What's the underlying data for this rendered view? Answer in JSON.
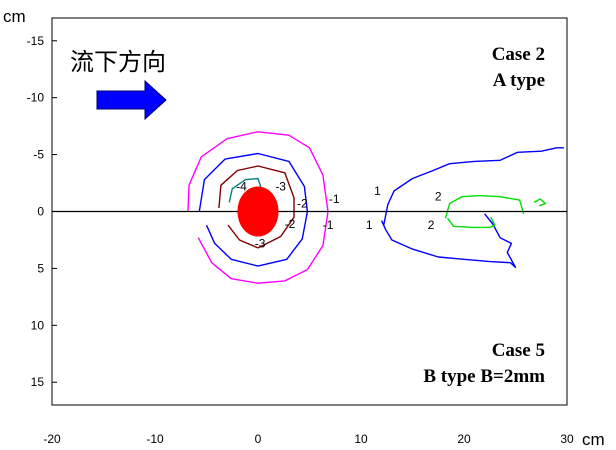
{
  "chart_data": {
    "type": "contour",
    "x_unit": "cm",
    "y_unit": "cm",
    "xlim": [
      -20,
      30
    ],
    "ylim": [
      17,
      -17
    ],
    "xticks": [
      -20,
      -10,
      0,
      10,
      20,
      30
    ],
    "yticks": [
      -15,
      -10,
      -5,
      0,
      5,
      10,
      15
    ],
    "flow_label": "流下方向",
    "top_right": [
      "Case 2",
      "A type"
    ],
    "bottom_right": [
      "Case 5",
      "B type B=2mm"
    ],
    "grid": false,
    "centerline_y": 0,
    "red_marker": {
      "x": 0,
      "y": 0,
      "rx": 2.0,
      "ry": 2.2,
      "color": "#ff0000"
    },
    "contours": [
      {
        "level": "-1",
        "color": "#ff00ff",
        "points": [
          [
            -6.8,
            0
          ],
          [
            -6.7,
            -2.3
          ],
          [
            -5.5,
            -4.8
          ],
          [
            -3,
            -6.4
          ],
          [
            0,
            -7
          ],
          [
            3,
            -6.7
          ],
          [
            5,
            -5.6
          ],
          [
            6.3,
            -3.2
          ],
          [
            6.8,
            0
          ],
          [
            6.3,
            3
          ],
          [
            4.8,
            5.1
          ],
          [
            2.6,
            6.1
          ],
          [
            0,
            6.3
          ],
          [
            -2.6,
            5.9
          ],
          [
            -4.5,
            4.5
          ],
          [
            -5.8,
            2.3
          ]
        ]
      },
      {
        "level": "-2",
        "color": "#0000ff",
        "points": [
          [
            -5.7,
            0
          ],
          [
            -5.2,
            -2.8
          ],
          [
            -3.2,
            -4.6
          ],
          [
            0,
            -5.1
          ],
          [
            3,
            -4.4
          ],
          [
            4.5,
            -2.2
          ],
          [
            4.8,
            0
          ],
          [
            4.3,
            2.4
          ],
          [
            2.8,
            4.2
          ],
          [
            0,
            4.8
          ],
          [
            -2.6,
            4.2
          ],
          [
            -4.2,
            2.8
          ],
          [
            -5,
            1.2
          ]
        ]
      },
      {
        "level": "-3",
        "color": "#800000",
        "points": [
          [
            -3.8,
            -0.3
          ],
          [
            -3.6,
            -2.3
          ],
          [
            -2,
            -3.6
          ],
          [
            0,
            -4
          ],
          [
            2.6,
            -3.4
          ],
          [
            3.5,
            -1.2
          ],
          [
            3.5,
            0.5
          ],
          [
            2.2,
            2.2
          ],
          [
            0,
            3.2
          ],
          [
            -1.8,
            2.5
          ],
          [
            -2.9,
            1.2
          ]
        ]
      },
      {
        "level": "-4",
        "color": "#008080",
        "points": [
          [
            -2.8,
            -0.8
          ],
          [
            -2.5,
            -2
          ],
          [
            -1.2,
            -2.8
          ],
          [
            0,
            -2.9
          ],
          [
            0.4,
            -1.8
          ],
          [
            0.6,
            -0.8
          ],
          [
            0.4,
            0.2
          ]
        ]
      },
      {
        "level": "1",
        "color": "#0000ff",
        "points": [
          [
            12.2,
            1.2
          ],
          [
            12.6,
            -0.6
          ],
          [
            13.2,
            -1.8
          ],
          [
            15,
            -2.9
          ],
          [
            17,
            -3.6
          ],
          [
            18.6,
            -4.2
          ],
          [
            21,
            -4.4
          ],
          [
            23.5,
            -4.5
          ],
          [
            25.2,
            -5.2
          ],
          [
            27.5,
            -5.3
          ],
          [
            29,
            -5.6
          ],
          [
            29.7,
            -5.6
          ]
        ]
      },
      {
        "level": "1",
        "color": "#0000ff",
        "points": [
          [
            12,
            0.8
          ],
          [
            12.4,
            1.6
          ],
          [
            13,
            2.5
          ],
          [
            15,
            3.3
          ],
          [
            17.5,
            4
          ],
          [
            20,
            4.2
          ],
          [
            22.5,
            4.4
          ],
          [
            24.5,
            4.5
          ],
          [
            25,
            4.9
          ],
          [
            24.2,
            3.6
          ],
          [
            24.6,
            2.8
          ],
          [
            23.5,
            2.3
          ],
          [
            22.8,
            1.1
          ],
          [
            22,
            0.2
          ]
        ]
      },
      {
        "level": "2",
        "color": "#00dd00",
        "points": [
          [
            18.2,
            0.6
          ],
          [
            18.6,
            -0.7
          ],
          [
            19.8,
            -1.3
          ],
          [
            21.5,
            -1.4
          ],
          [
            23.5,
            -1.3
          ],
          [
            25.4,
            -1
          ],
          [
            25.8,
            0.2
          ]
        ]
      },
      {
        "level": "2",
        "color": "#00dd00",
        "points": [
          [
            18.4,
            0.6
          ],
          [
            19,
            1.3
          ],
          [
            20.8,
            1.4
          ],
          [
            22.5,
            1.4
          ],
          [
            23,
            1.2
          ],
          [
            22.6,
            0.5
          ]
        ]
      },
      {
        "level": "2",
        "color": "#00dd00",
        "points": [
          [
            26.8,
            -0.8
          ],
          [
            27.4,
            -1.1
          ],
          [
            27.9,
            -0.7
          ],
          [
            27.3,
            -0.5
          ]
        ]
      }
    ],
    "contour_labels": [
      {
        "text": "-4",
        "x": -1.6,
        "y": -2.2
      },
      {
        "text": "-3",
        "x": 2.2,
        "y": -2.2
      },
      {
        "text": "-2",
        "x": 4.3,
        "y": -0.7
      },
      {
        "text": "-1",
        "x": 7.4,
        "y": -1.1
      },
      {
        "text": "-2",
        "x": 3.1,
        "y": 1.1
      },
      {
        "text": "-1",
        "x": 6.8,
        "y": 1.2
      },
      {
        "text": "-3",
        "x": 0.2,
        "y": 2.8
      },
      {
        "text": "1",
        "x": 11.6,
        "y": -1.8
      },
      {
        "text": "1",
        "x": 10.8,
        "y": 1.2
      },
      {
        "text": "2",
        "x": 17.5,
        "y": -1.3
      },
      {
        "text": "2",
        "x": 16.8,
        "y": 1.2
      }
    ]
  },
  "colors": {
    "arrow": "#0000ff",
    "axis": "#000000"
  },
  "icons": {
    "flow_arrow": "flow-direction-arrow-icon"
  }
}
